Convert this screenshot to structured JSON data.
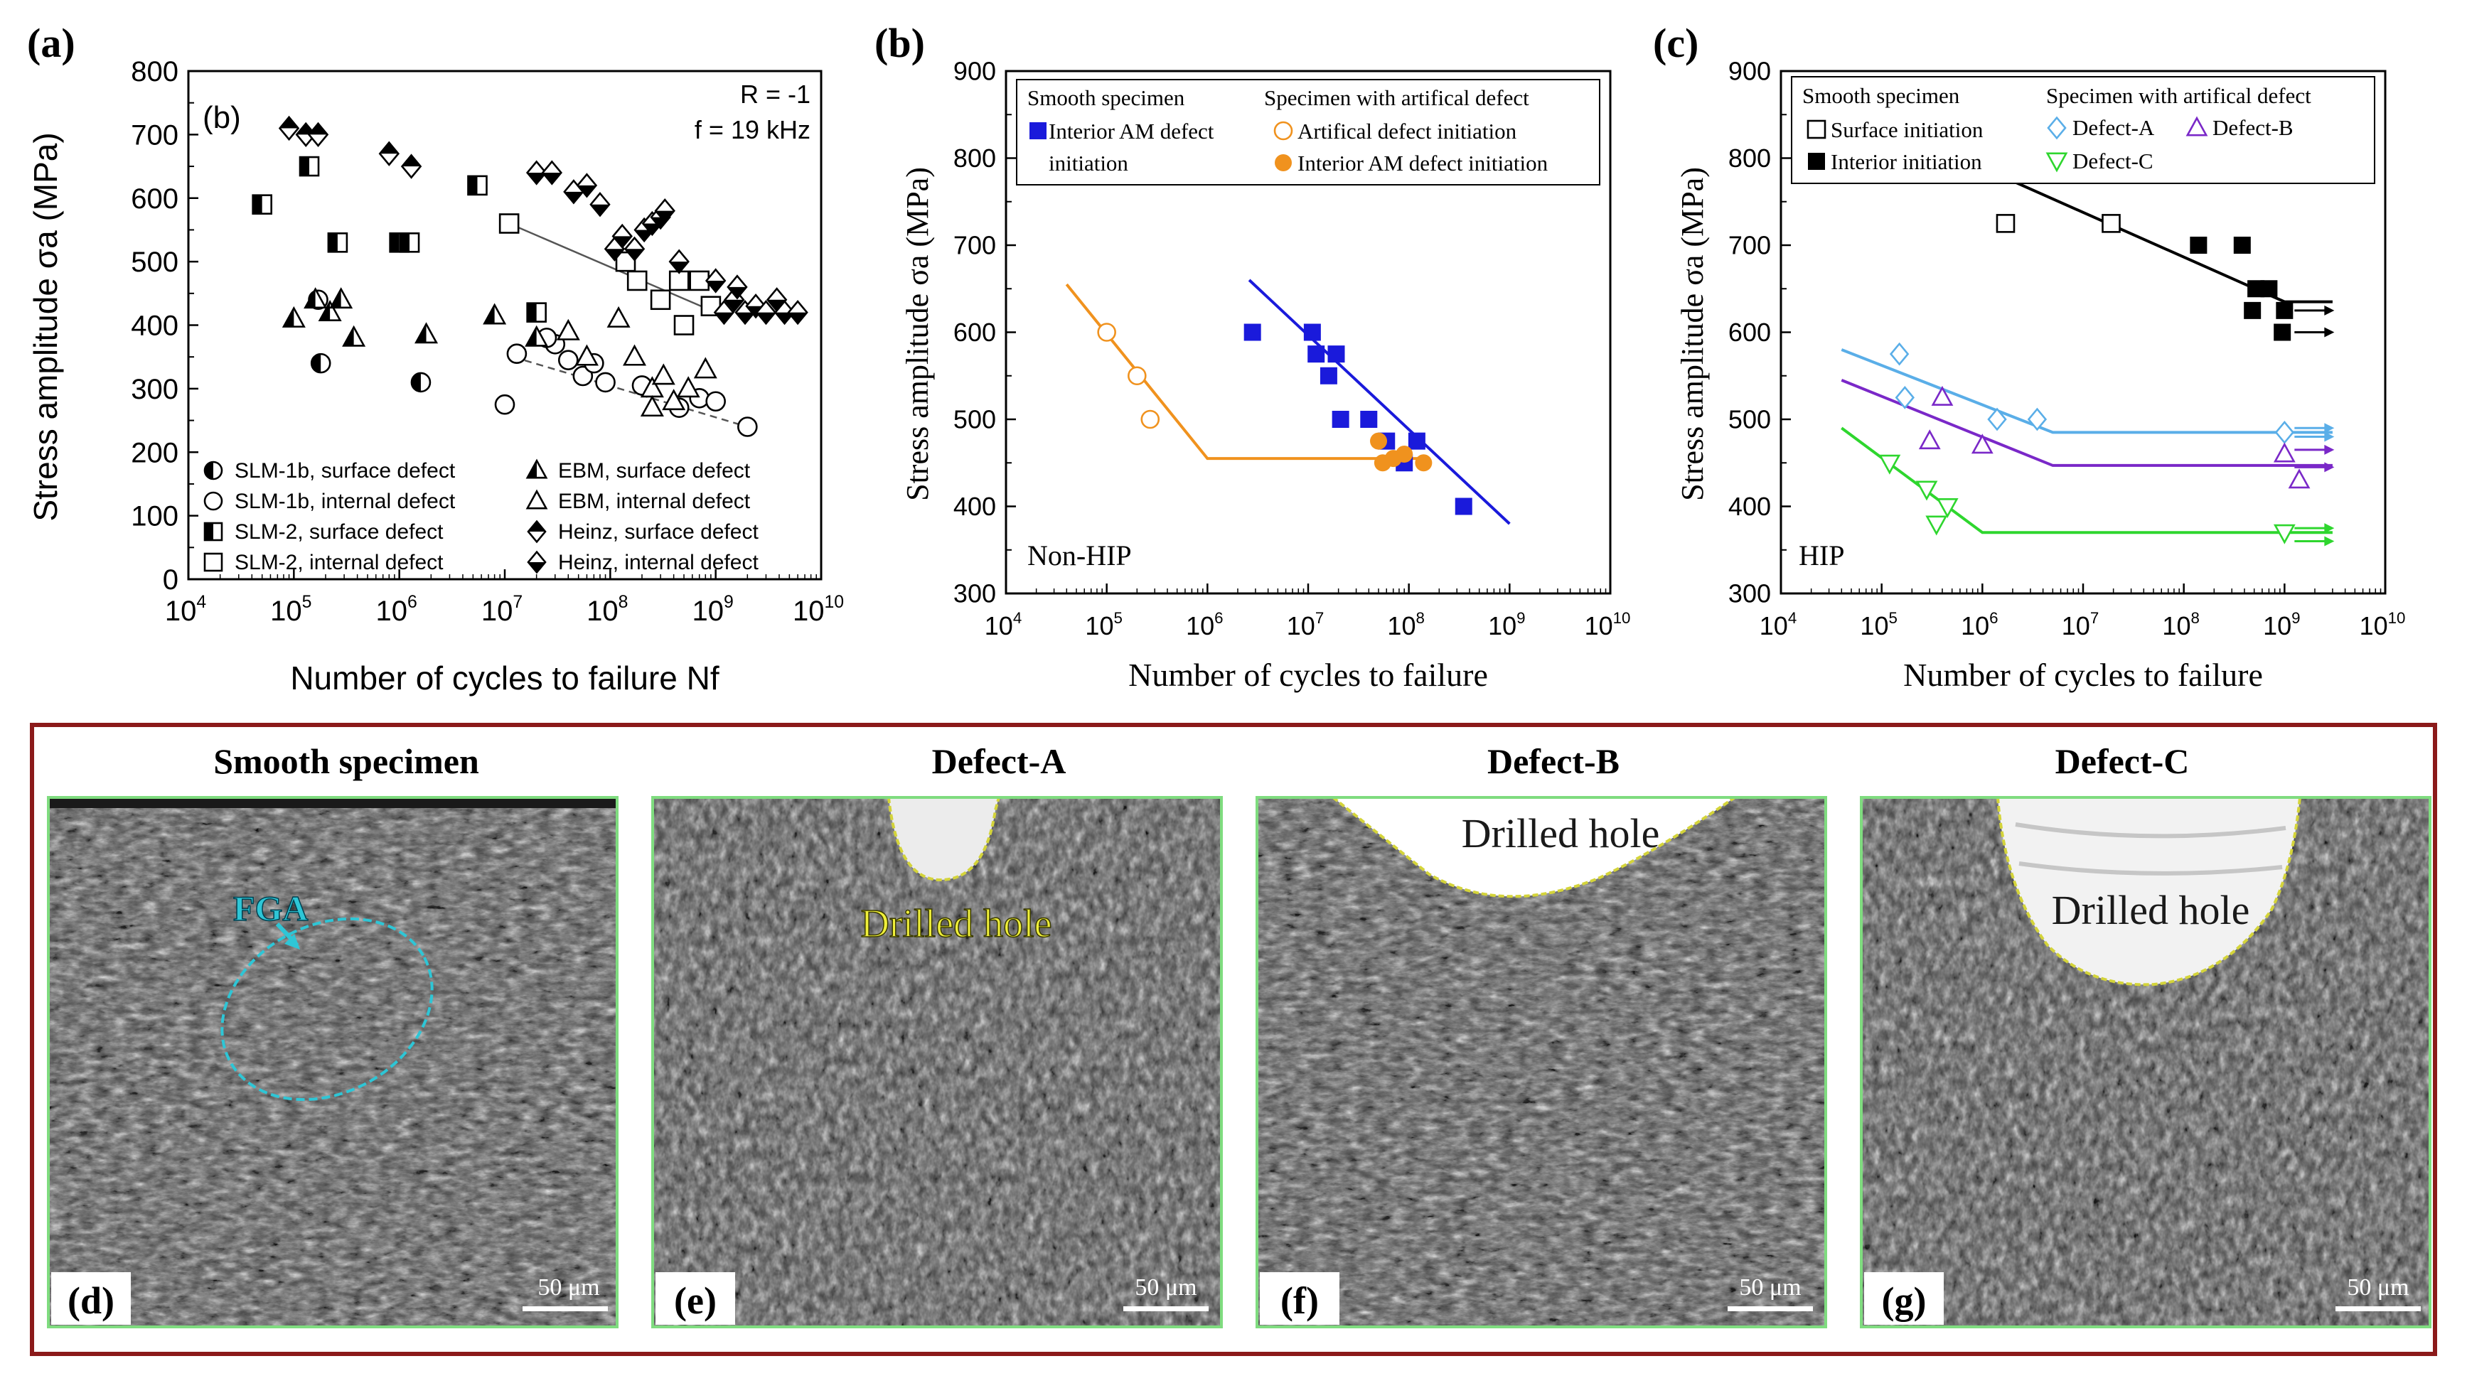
{
  "chart_data": [
    {
      "id": "a",
      "type": "scatter",
      "panel_label": "(a)",
      "inner_label": "(b)",
      "ylabel": "Stress amplitude σa (MPa)",
      "xlabel": "Number of cycles to failure Nf",
      "x_scale": "log",
      "xlim_exp": [
        4,
        10
      ],
      "ylim": [
        0,
        800
      ],
      "yticks": [
        "0",
        "100",
        "200",
        "300",
        "400",
        "500",
        "600",
        "700",
        "800"
      ],
      "xticks": [
        "10^4",
        "10^5",
        "10^6",
        "10^7",
        "10^8",
        "10^9",
        "10^10"
      ],
      "annotations": [
        "R = -1",
        "f = 19 kHz"
      ],
      "legend_position": "bottom",
      "series": [
        {
          "name": "SLM-1b, surface defect",
          "marker": "circle-half",
          "points": [
            [
              180000,
              340
            ],
            [
              1600000,
              310
            ],
            [
              170000,
              440
            ]
          ]
        },
        {
          "name": "SLM-1b, internal defect",
          "marker": "circle-open",
          "points": [
            [
              10000000,
              275
            ],
            [
              13000000,
              355
            ],
            [
              30000000,
              370
            ],
            [
              40000000,
              345
            ],
            [
              55000000,
              320
            ],
            [
              70000000,
              340
            ],
            [
              90000000,
              310
            ],
            [
              200000000,
              305
            ],
            [
              450000000,
              270
            ],
            [
              700000000,
              285
            ],
            [
              1000000000,
              280
            ],
            [
              2000000000,
              240
            ],
            [
              25000000,
              380
            ]
          ]
        },
        {
          "name": "SLM-2, surface defect",
          "marker": "square-half",
          "points": [
            [
              50000,
              590
            ],
            [
              140000,
              650
            ],
            [
              260000,
              530
            ],
            [
              1000000,
              530
            ],
            [
              1250000,
              530
            ],
            [
              5500000,
              620
            ],
            [
              20000000,
              420
            ]
          ]
        },
        {
          "name": "SLM-2, internal defect",
          "marker": "square-open",
          "points": [
            [
              11000000,
              560
            ],
            [
              140000000,
              500
            ],
            [
              180000000,
              470
            ],
            [
              300000000,
              440
            ],
            [
              450000000,
              470
            ],
            [
              500000000,
              400
            ],
            [
              700000000,
              470
            ],
            [
              900000000,
              430
            ]
          ]
        },
        {
          "name": "EBM, surface defect",
          "marker": "triangle-half",
          "points": [
            [
              100000,
              410
            ],
            [
              160000,
              440
            ],
            [
              220000,
              420
            ],
            [
              280000,
              440
            ],
            [
              370000,
              380
            ],
            [
              1800000,
              385
            ],
            [
              8000000,
              415
            ],
            [
              20000000,
              380
            ]
          ]
        },
        {
          "name": "EBM, internal defect",
          "marker": "triangle-open",
          "points": [
            [
              40000000,
              390
            ],
            [
              60000000,
              350
            ],
            [
              120000000,
              410
            ],
            [
              170000000,
              350
            ],
            [
              250000000,
              300
            ],
            [
              320000000,
              320
            ],
            [
              400000000,
              280
            ],
            [
              550000000,
              300
            ],
            [
              800000000,
              330
            ],
            [
              250000000,
              270
            ]
          ]
        },
        {
          "name": "Heinz, surface defect",
          "marker": "diamond-half",
          "points": [
            [
              90000,
              710
            ],
            [
              130000,
              700
            ],
            [
              170000,
              700
            ],
            [
              800000,
              670
            ],
            [
              1300000,
              650
            ]
          ]
        },
        {
          "name": "Heinz, internal defect",
          "marker": "diamond-full",
          "points": [
            [
              20000000,
              640
            ],
            [
              28000000,
              640
            ],
            [
              45000000,
              610
            ],
            [
              60000000,
              620
            ],
            [
              80000000,
              590
            ],
            [
              110000000,
              520
            ],
            [
              130000000,
              540
            ],
            [
              170000000,
              520
            ],
            [
              210000000,
              550
            ],
            [
              250000000,
              560
            ],
            [
              300000000,
              570
            ],
            [
              330000000,
              580
            ],
            [
              450000000,
              500
            ],
            [
              1000000000,
              470
            ],
            [
              1200000000,
              420
            ],
            [
              1500000000,
              440
            ],
            [
              1900000000,
              420
            ],
            [
              2400000000,
              430
            ],
            [
              3000000000,
              420
            ],
            [
              3800000000,
              440
            ],
            [
              4500000000,
              420
            ],
            [
              6000000000,
              420
            ],
            [
              1600000000,
              460
            ]
          ]
        }
      ],
      "trend_lines": [
        {
          "style": "solid",
          "points": [
            [
              11000000,
              560
            ],
            [
              1000000000,
              420
            ]
          ]
        },
        {
          "style": "dashed",
          "points": [
            [
              12000000,
              350
            ],
            [
              2000000000,
              240
            ]
          ]
        }
      ]
    },
    {
      "id": "b",
      "type": "scatter",
      "panel_label": "(b)",
      "ylabel": "Stress amplitude σa (MPa)",
      "xlabel": "Number of cycles to failure",
      "x_scale": "log",
      "xlim_exp": [
        4,
        10
      ],
      "ylim": [
        300,
        900
      ],
      "yticks": [
        "300",
        "400",
        "500",
        "600",
        "700",
        "800",
        "900"
      ],
      "xticks": [
        "10^4",
        "10^5",
        "10^6",
        "10^7",
        "10^8",
        "10^9",
        "10^10"
      ],
      "corner_text": "Non-HIP",
      "legend_header_left": "Smooth specimen",
      "legend_header_right": "Specimen with artifical defect",
      "legend_position": "top",
      "series": [
        {
          "name": "Interior AM defect initiation",
          "name_line1": "Interior AM defect",
          "name_line2": "initiation",
          "marker": "square-filled",
          "color": "#1a1adb",
          "points": [
            [
              2800000,
              600
            ],
            [
              11000000,
              600
            ],
            [
              12000000,
              575
            ],
            [
              16000000,
              550
            ],
            [
              19000000,
              575
            ],
            [
              21000000,
              500
            ],
            [
              40000000,
              500
            ],
            [
              60000000,
              475
            ],
            [
              90000000,
              450
            ],
            [
              120000000,
              475
            ],
            [
              350000000,
              400
            ]
          ]
        },
        {
          "name": "Artifical defect initiation",
          "marker": "circle-open",
          "color": "#f0921e",
          "points": [
            [
              100000,
              600
            ],
            [
              200000,
              550
            ],
            [
              270000,
              500
            ]
          ]
        },
        {
          "name": "Interior AM defect initiation",
          "marker": "circle-filled",
          "color": "#f0921e",
          "points": [
            [
              50000000,
              475
            ],
            [
              55000000,
              450
            ],
            [
              70000000,
              455
            ],
            [
              90000000,
              460
            ],
            [
              140000000,
              450
            ]
          ]
        }
      ],
      "trend_lines": [
        {
          "color": "#f0921e",
          "points": [
            [
              40000,
              655
            ],
            [
              1000000,
              455
            ],
            [
              150000000,
              455
            ]
          ]
        },
        {
          "color": "#1a1adb",
          "points": [
            [
              2600000,
              660
            ],
            [
              1000000000,
              380
            ]
          ]
        }
      ]
    },
    {
      "id": "c",
      "type": "scatter",
      "panel_label": "(c)",
      "ylabel": "Stress amplitude σa (MPa)",
      "xlabel": "Number of cycles to failure",
      "x_scale": "log",
      "xlim_exp": [
        4,
        10
      ],
      "ylim": [
        300,
        900
      ],
      "yticks": [
        "300",
        "400",
        "500",
        "600",
        "700",
        "800",
        "900"
      ],
      "xticks": [
        "10^4",
        "10^5",
        "10^6",
        "10^7",
        "10^8",
        "10^9",
        "10^10"
      ],
      "corner_text": "HIP",
      "legend_header_left": "Smooth specimen",
      "legend_header_right": "Specimen with artifical defect",
      "legend_position": "top",
      "series": [
        {
          "name": "Surface initiation",
          "marker": "square-open",
          "color": "#000000",
          "points": [
            [
              1700000,
              725
            ],
            [
              19000000,
              725
            ]
          ]
        },
        {
          "name": "Interior initiation",
          "marker": "square-filled",
          "color": "#000000",
          "points": [
            [
              140000000,
              700
            ],
            [
              380000000,
              700
            ],
            [
              480000000,
              625
            ],
            [
              520000000,
              650
            ],
            [
              700000000,
              650
            ],
            [
              950000000,
              600
            ],
            [
              1000000000,
              625
            ]
          ]
        },
        {
          "name": "Defect-A",
          "marker": "diamond-open",
          "color": "#5aaee8",
          "points": [
            [
              150000,
              575
            ],
            [
              170000,
              525
            ],
            [
              1400000,
              500
            ],
            [
              3500000,
              500
            ],
            [
              1000000000,
              485
            ]
          ]
        },
        {
          "name": "Defect-B",
          "marker": "triangle-open",
          "color": "#7a28c8",
          "points": [
            [
              300000,
              475
            ],
            [
              400000,
              525
            ],
            [
              1000000,
              470
            ],
            [
              1000000000,
              460
            ],
            [
              1400000000,
              430
            ]
          ]
        },
        {
          "name": "Defect-C",
          "marker": "triangle-down-open",
          "color": "#2ed62e",
          "points": [
            [
              120000,
              450
            ],
            [
              280000,
              420
            ],
            [
              350000,
              380
            ],
            [
              450000,
              400
            ],
            [
              1000000000,
              370
            ]
          ]
        }
      ],
      "trend_lines": [
        {
          "color": "#000000",
          "points": [
            [
              1200000,
              785
            ],
            [
              1000000000,
              635
            ],
            [
              3000000000,
              635
            ]
          ]
        },
        {
          "color": "#5aaee8",
          "points": [
            [
              40000,
              580
            ],
            [
              5000000,
              485
            ],
            [
              3000000000,
              485
            ]
          ]
        },
        {
          "color": "#7a28c8",
          "points": [
            [
              40000,
              545
            ],
            [
              5000000,
              447
            ],
            [
              3000000000,
              447
            ]
          ]
        },
        {
          "color": "#2ed62e",
          "points": [
            [
              40000,
              490
            ],
            [
              1000000,
              370
            ],
            [
              3000000000,
              370
            ]
          ]
        }
      ],
      "runouts": [
        {
          "color": "#000000",
          "points": [
            [
              1000000000,
              625
            ],
            [
              1000000000,
              600
            ]
          ]
        },
        {
          "color": "#5aaee8",
          "points": [
            [
              1000000000,
              490
            ],
            [
              1000000000,
              480
            ]
          ]
        },
        {
          "color": "#7a28c8",
          "points": [
            [
              1000000000,
              465
            ],
            [
              1000000000,
              445
            ]
          ]
        },
        {
          "color": "#2ed62e",
          "points": [
            [
              1000000000,
              375
            ],
            [
              1000000000,
              360
            ]
          ]
        }
      ]
    }
  ],
  "micrographs": [
    {
      "title": "Smooth specimen",
      "panel": "(d)",
      "annotation": "FGA",
      "scale_bar": "50 μm"
    },
    {
      "title": "Defect-A",
      "panel": "(e)",
      "annotation": "Drilled hole",
      "scale_bar": "50 μm"
    },
    {
      "title": "Defect-B",
      "panel": "(f)",
      "annotation": "Drilled hole",
      "scale_bar": "50 μm"
    },
    {
      "title": "Defect-C",
      "panel": "(g)",
      "annotation": "Drilled hole",
      "scale_bar": "50 μm"
    }
  ],
  "colors": {
    "frame": "#8b1a1a",
    "image_border": "#7fdc7f",
    "fga_outline": "#2ec6d6",
    "hole_outline": "#d4d43a"
  }
}
